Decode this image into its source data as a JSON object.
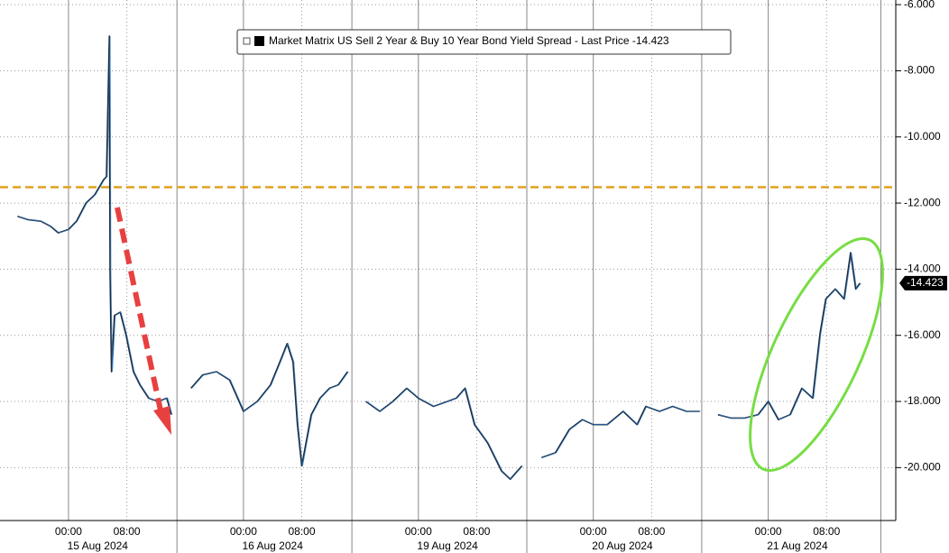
{
  "chart_data": {
    "type": "line",
    "series": [
      {
        "name": "Market Matrix US Sell 2 Year & Buy 10 Year Bond Yield Spread - Last Price -14.423",
        "color": "#1f2a3a",
        "values": [
          -12.4,
          -12.5,
          -12.55,
          -12.7,
          -12.9,
          -12.8,
          -12.55,
          -12.0,
          -11.75,
          -11.3,
          -11.2,
          -6.95,
          -14.05,
          -17.1,
          -15.4,
          -15.3,
          -16.0,
          -17.1,
          -17.5,
          -17.9,
          -18.0,
          -17.9,
          -18.4,
          null,
          -17.6,
          -17.2,
          -17.1,
          -17.35,
          -18.3,
          -18.0,
          -17.5,
          -16.8,
          -16.25,
          -16.8,
          -18.7,
          -19.95,
          -18.4,
          -17.9,
          -17.6,
          -17.5,
          -17.1,
          null,
          -18.0,
          -18.3,
          -18.0,
          -17.6,
          -17.9,
          -18.15,
          -18.0,
          -17.9,
          -17.6,
          -18.7,
          -19.25,
          -20.1,
          -20.35,
          -19.95,
          null,
          -19.7,
          -19.55,
          -18.85,
          -18.55,
          -18.7,
          -18.7,
          -18.3,
          -18.7,
          -18.15,
          -18.3,
          -18.15,
          -18.3,
          -18.3,
          null,
          -18.4,
          -18.5,
          -18.5,
          -18.4,
          -18.0,
          -18.55,
          -18.4,
          -17.6,
          -17.9,
          -15.95,
          -14.9,
          -14.6,
          -14.9,
          -13.5,
          -14.6,
          -14.423
        ]
      }
    ],
    "x": [
      -7,
      -5.6,
      -3.8,
      -2.5,
      -1.4,
      0,
      1.1,
      2.4,
      3.6,
      4.8,
      5.2,
      5.6,
      5.7,
      5.9,
      6.3,
      7.1,
      7.9,
      8.9,
      9.8,
      11,
      12.3,
      13.5,
      14.1,
      14.5,
      16.8,
      18.4,
      20.3,
      22.1,
      24,
      25.9,
      27.7,
      29,
      30,
      30.8,
      31.4,
      32,
      33.3,
      34.5,
      35.8,
      37,
      38.3,
      39.5,
      40.8,
      42.7,
      44.5,
      46.4,
      48,
      50.1,
      52,
      53.2,
      54.4,
      55.7,
      57.5,
      59.4,
      60.6,
      62.2,
      63.5,
      64.9,
      66.8,
      68.7,
      70.5,
      72,
      73.9,
      76.1,
      78,
      79.2,
      81.1,
      82.9,
      84.8,
      86.6,
      88,
      89.1,
      90.9,
      92.8,
      94.6,
      96,
      97.4,
      99,
      100.6,
      102.1,
      103.1,
      103.9,
      105.2,
      106.4,
      107.3,
      108,
      108.6
    ],
    "last_price": -14.423,
    "reference_line": {
      "value": -11.52,
      "color": "#e0a020"
    },
    "xlim": [
      -9.4,
      113.5
    ],
    "ylim": [
      -21.6,
      -5.86
    ],
    "yticks": [
      {
        "value": -6,
        "label": "-6.000"
      },
      {
        "value": -8,
        "label": "-8.000"
      },
      {
        "value": -10,
        "label": "-10.000"
      },
      {
        "value": -12,
        "label": "-12.000"
      },
      {
        "value": -14,
        "label": "-14.000"
      },
      {
        "value": -16,
        "label": "-16.000"
      },
      {
        "value": -18,
        "label": "-18.000"
      },
      {
        "value": -20,
        "label": "-20.000"
      }
    ],
    "xticks": [
      {
        "value": 0,
        "label": "00:00"
      },
      {
        "value": 8,
        "label": "08:00"
      },
      {
        "value": 24,
        "label": "00:00"
      },
      {
        "value": 32,
        "label": "08:00"
      },
      {
        "value": 48,
        "label": "00:00"
      },
      {
        "value": 56,
        "label": "08:00"
      },
      {
        "value": 72,
        "label": "00:00"
      },
      {
        "value": 80,
        "label": "08:00"
      },
      {
        "value": 96,
        "label": "00:00"
      },
      {
        "value": 104,
        "label": "08:00"
      }
    ],
    "x_dates": [
      {
        "value": 4,
        "label": "15 Aug 2024"
      },
      {
        "value": 28,
        "label": "16 Aug 2024"
      },
      {
        "value": 52,
        "label": "19 Aug 2024"
      },
      {
        "value": 76,
        "label": "20 Aug 2024"
      },
      {
        "value": 100,
        "label": "21 Aug 2024"
      }
    ],
    "grid": true
  }
}
